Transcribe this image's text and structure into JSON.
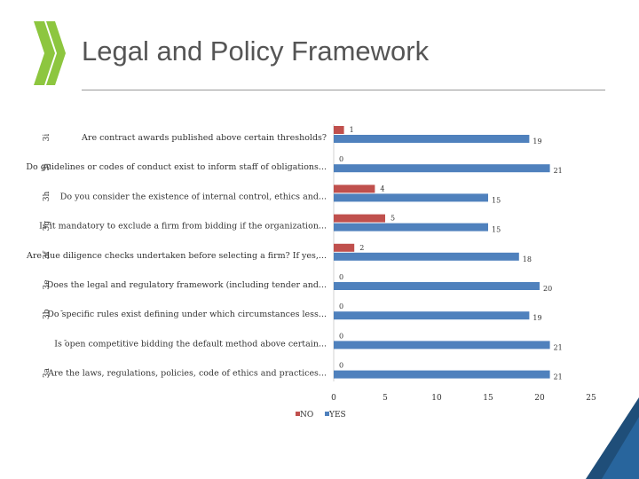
{
  "page": {
    "title": "Legal and Policy Framework"
  },
  "colors": {
    "no": "#C0504D",
    "yes": "#4F81BD",
    "logo": "#8DC63F",
    "corner": "#1F4E79"
  },
  "chart_data": {
    "type": "bar",
    "orientation": "horizontal",
    "categories": [
      "Are contract awards published above certain thresholds?",
      "Do guidelines or codes of conduct exist to inform staff of obligations...",
      "Do you consider the existence of internal control, ethics and...",
      "Is it mandatory to exclude a firm from bidding if the organization...",
      "Are due diligence checks undertaken before selecting a firm? If yes,...",
      "Does the legal and regulatory framework (including tender and...",
      "Do specific rules exist defining under which circumstances less...",
      "Is open competitive bidding the default method above certain...",
      "Are the laws, regulations, policies, code of ethics and practices..."
    ],
    "side_labels": [
      "3i",
      "3j",
      "3h",
      "3g",
      "3f",
      "3e",
      "3b",
      "",
      "3a"
    ],
    "dash_labels": [
      "",
      "",
      "",
      "",
      "",
      "",
      "-",
      "-",
      ""
    ],
    "series": [
      {
        "name": "NO",
        "values": [
          1,
          0,
          4,
          5,
          2,
          0,
          0,
          0,
          0
        ]
      },
      {
        "name": "YES",
        "values": [
          19,
          21,
          15,
          15,
          18,
          20,
          19,
          21,
          21
        ]
      }
    ],
    "xlim": [
      0,
      25
    ],
    "xticks": [
      0,
      5,
      10,
      15,
      20,
      25
    ],
    "legend": "bottom"
  }
}
